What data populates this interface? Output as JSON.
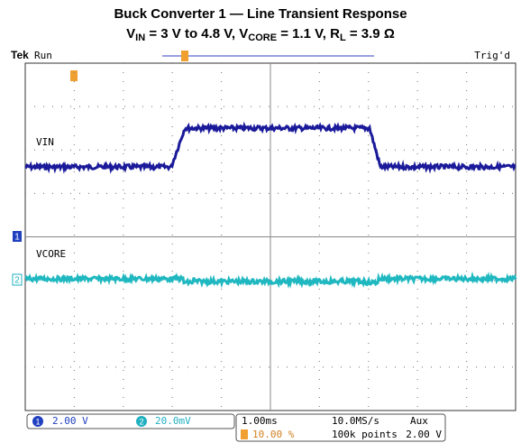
{
  "header": {
    "title": "Buck Converter 1 — Line Transient Response",
    "subtitle": [
      "V",
      "IN",
      " = 3 V to 4.8 V, V",
      "CORE",
      " = 1.1 V, R",
      "L",
      " = 3.9 Ω"
    ]
  },
  "scope": {
    "brand": "Tek",
    "state": "Run",
    "trigger_status": "Trig'd",
    "traces": [
      {
        "label": "VIN",
        "marker": "1"
      },
      {
        "label": "VCORE",
        "marker": "2"
      }
    ],
    "status": {
      "ch1_scale": "2.00 V",
      "ch2_scale": "20.0mV",
      "timebase": "1.00ms",
      "trigger_position": "10.00 %",
      "sample_rate": "10.0MS/s",
      "record_length": "100k points",
      "trigger_source": "Aux",
      "trigger_level": "2.00 V"
    }
  }
}
